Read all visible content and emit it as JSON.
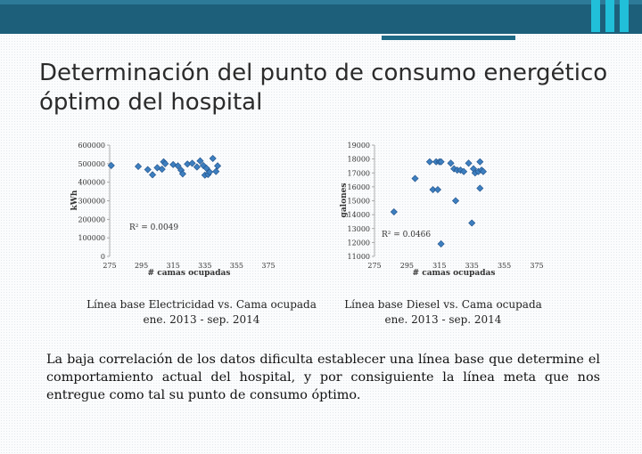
{
  "slide": {
    "title": "Determinación del punto de consumo energético óptimo del hospital",
    "note": "La baja correlación de los datos dificulta establecer una línea base que determine el comportamiento actual del hospital, y por consiguiente la línea meta que nos entregue como tal su punto de consumo óptimo.",
    "accent_color": "#1d5f7a"
  },
  "chart_data": [
    {
      "type": "scatter",
      "title": "",
      "caption_line1": "Línea base Electricidad vs. Cama ocupada",
      "caption_line2": "ene. 2013 - sep. 2014",
      "xlabel": "# camas ocupadas",
      "ylabel": "kWh",
      "xlim": [
        275,
        375
      ],
      "ylim": [
        0,
        600000
      ],
      "x_ticks": [
        275,
        295,
        315,
        335,
        355,
        375
      ],
      "y_ticks": [
        0,
        100000,
        200000,
        300000,
        400000,
        500000,
        600000
      ],
      "r2_label": "R² = 0.0049",
      "marker_color": "#3d7fc0",
      "points": [
        [
          276,
          490000
        ],
        [
          293,
          485000
        ],
        [
          299,
          468000
        ],
        [
          302,
          440000
        ],
        [
          305,
          478000
        ],
        [
          308,
          470000
        ],
        [
          309,
          510000
        ],
        [
          310,
          500000
        ],
        [
          315,
          495000
        ],
        [
          318,
          488000
        ],
        [
          320,
          465000
        ],
        [
          321,
          445000
        ],
        [
          324,
          498000
        ],
        [
          327,
          502000
        ],
        [
          330,
          482000
        ],
        [
          332,
          515000
        ],
        [
          334,
          490000
        ],
        [
          335,
          438000
        ],
        [
          336,
          475000
        ],
        [
          337,
          442000
        ],
        [
          338,
          455000
        ],
        [
          340,
          528000
        ],
        [
          342,
          458000
        ],
        [
          343,
          488000
        ]
      ]
    },
    {
      "type": "scatter",
      "title": "",
      "caption_line1": "Línea base Diesel vs. Cama ocupada",
      "caption_line2": "ene. 2013 - sep. 2014",
      "xlabel": "# camas ocupadas",
      "ylabel": "galones",
      "xlim": [
        275,
        375
      ],
      "ylim": [
        11000,
        19000
      ],
      "x_ticks": [
        275,
        295,
        315,
        335,
        355,
        375
      ],
      "y_ticks": [
        11000,
        12000,
        13000,
        14000,
        15000,
        16000,
        17000,
        18000,
        19000
      ],
      "r2_label": "R² = 0.0466",
      "marker_color": "#3d7fc0",
      "points": [
        [
          287,
          14200
        ],
        [
          300,
          16600
        ],
        [
          309,
          17800
        ],
        [
          311,
          15800
        ],
        [
          313,
          17800
        ],
        [
          314,
          15800
        ],
        [
          315,
          17800
        ],
        [
          316,
          17800
        ],
        [
          316,
          11900
        ],
        [
          322,
          17700
        ],
        [
          324,
          17300
        ],
        [
          325,
          15000
        ],
        [
          326,
          17200
        ],
        [
          328,
          17200
        ],
        [
          330,
          17100
        ],
        [
          333,
          17700
        ],
        [
          335,
          13400
        ],
        [
          336,
          17300
        ],
        [
          337,
          17000
        ],
        [
          339,
          17100
        ],
        [
          340,
          17800
        ],
        [
          340,
          15900
        ],
        [
          341,
          17200
        ],
        [
          342,
          17100
        ]
      ]
    }
  ]
}
